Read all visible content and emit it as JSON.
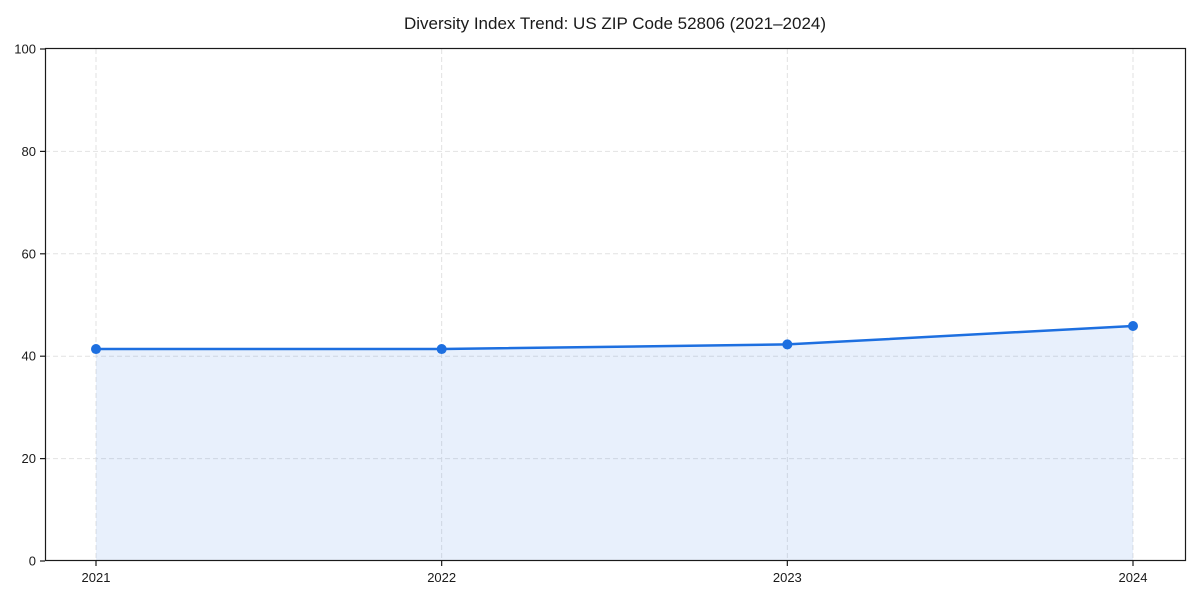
{
  "chart_data": {
    "type": "area",
    "title": "Diversity Index Trend: US ZIP Code 52806 (2021–2024)",
    "x": [
      2021,
      2022,
      2023,
      2024
    ],
    "series": [
      {
        "name": "Diversity Index",
        "values": [
          41.4,
          41.4,
          42.3,
          45.9
        ]
      }
    ],
    "xlabel": "",
    "ylabel": "",
    "ylim": [
      0,
      100
    ],
    "yticks": [
      0,
      20,
      40,
      60,
      80,
      100
    ],
    "xtick_labels": [
      "2021",
      "2022",
      "2023",
      "2024"
    ],
    "grid": "dashed",
    "legend_position": "none",
    "line_color": "#1d6fe0",
    "fill_color": "rgba(29, 111, 224, 0.10)",
    "grid_color": "#e2e2e2",
    "axis_color": "#1a1a1a",
    "background_color": "#ffffff"
  }
}
